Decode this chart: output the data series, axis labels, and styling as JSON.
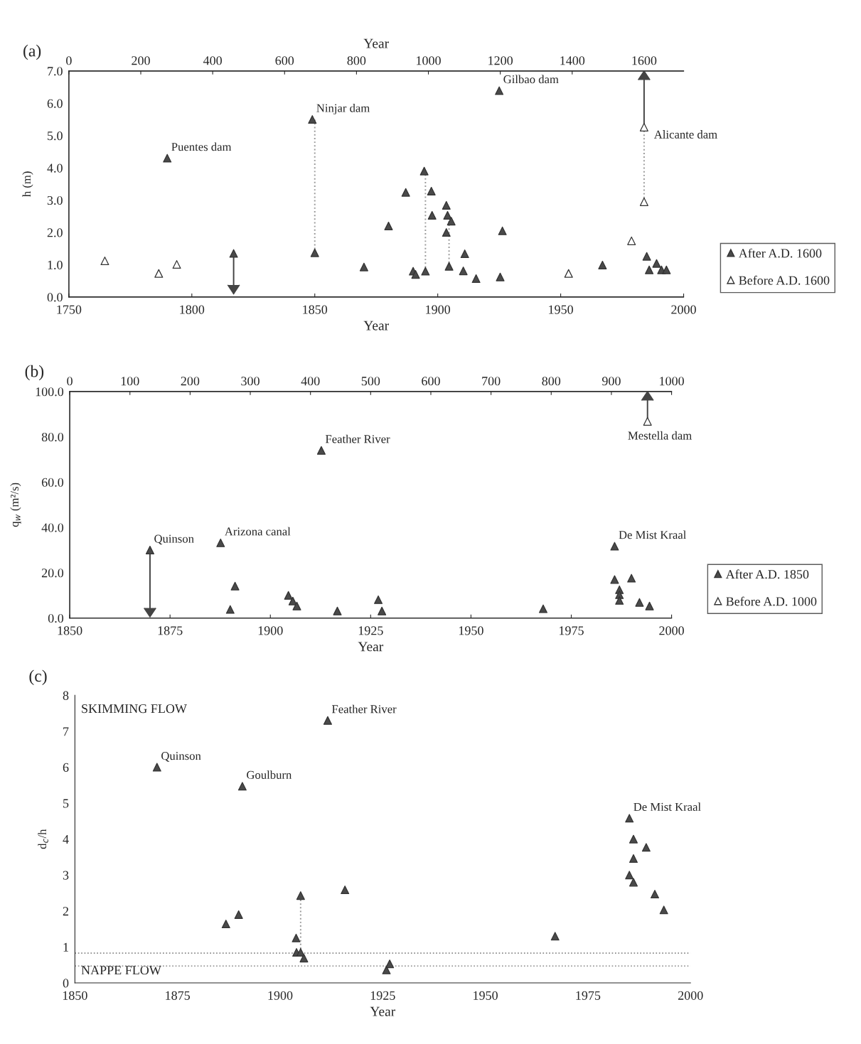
{
  "chart_data": [
    {
      "type": "scatter",
      "title": "(a)",
      "xlabel": "Year",
      "ylabel": "h (m)",
      "x2label": "Year",
      "xlim": [
        1750,
        2000
      ],
      "xticks": [
        1750,
        1800,
        1850,
        1900,
        1950,
        2000
      ],
      "x2lim": [
        0,
        1710
      ],
      "x2ticks": [
        0,
        200,
        400,
        600,
        800,
        1000,
        1200,
        1400,
        1600
      ],
      "ylim": [
        0,
        7
      ],
      "yticks": [
        {
          "value": 0,
          "label": "0.0"
        },
        {
          "value": 1,
          "label": "1.0"
        },
        {
          "value": 2,
          "label": "2.0"
        },
        {
          "value": 3,
          "label": "3.0"
        },
        {
          "value": 4,
          "label": "4.0"
        },
        {
          "value": 5,
          "label": "5.0"
        },
        {
          "value": 6,
          "label": "6.0"
        },
        {
          "value": 7,
          "label": "7.0"
        }
      ],
      "marker": "triangle",
      "legend": "right",
      "grid": false,
      "series": [
        {
          "type": "line",
          "color": "#9a9a9a",
          "line_style": "dotted",
          "marker": "none",
          "x": [
            1850,
            1850
          ],
          "values": [
            1.37,
            5.5
          ]
        },
        {
          "type": "line",
          "color": "#9a9a9a",
          "line_style": "dotted",
          "marker": "none",
          "x": [
            1895,
            1895
          ],
          "values": [
            0.8,
            3.9
          ]
        },
        {
          "type": "line",
          "color": "#9a9a9a",
          "line_style": "dotted",
          "marker": "none",
          "x": [
            1904.6,
            1904.6
          ],
          "values": [
            0.95,
            2.5
          ]
        },
        {
          "type": "line",
          "color": "#9a9a9a",
          "line_style": "dotted",
          "marker": "none",
          "axis": "x2",
          "x": [
            1600,
            1600
          ],
          "values": [
            2.95,
            5.26
          ]
        },
        {
          "name": "After A.D. 1600",
          "color": "#4a4a4a",
          "x": [
            1790,
            1817,
            1849,
            1850,
            1870,
            1880,
            1887,
            1890,
            1891,
            1894.5,
            1895,
            1897.4,
            1897.7,
            1903.5,
            1903.5,
            1904,
            1905.5,
            1904.6,
            1910.4,
            1911,
            1915.6,
            1925,
            1925.4,
            1926.3,
            1967,
            1985,
            1986,
            1989,
            1991,
            1993
          ],
          "values": [
            4.3,
            1.35,
            5.5,
            1.37,
            0.93,
            2.2,
            3.24,
            0.8,
            0.7,
            3.9,
            0.8,
            3.28,
            2.53,
            2.84,
            2.0,
            2.53,
            2.35,
            0.95,
            0.81,
            1.34,
            0.57,
            6.39,
            0.62,
            2.05,
            0.99,
            1.26,
            0.84,
            1.04,
            0.84,
            0.84
          ],
          "errors": [
            null,
            [
              0.1,
              1.35
            ],
            null,
            null,
            null,
            null,
            null,
            null,
            null,
            null,
            null,
            null,
            null,
            null,
            null,
            null,
            null,
            null,
            null,
            null,
            null,
            null,
            null,
            null,
            null,
            null,
            null,
            null,
            null,
            null
          ]
        },
        {
          "name": "Before A.D. 1600",
          "color": "#ffffff",
          "axis": "x2",
          "x": [
            100,
            250,
            300,
            1390,
            1565,
            1600,
            1600
          ],
          "values": [
            1.12,
            0.73,
            1.01,
            0.73,
            1.74,
            2.95,
            5.26
          ],
          "errors": [
            null,
            null,
            null,
            null,
            null,
            null,
            [
              5.26,
              7.0
            ]
          ]
        }
      ],
      "annotations": [
        {
          "text": "Puentes dam",
          "x": 1790,
          "y": 4.3
        },
        {
          "text": "Ninjar dam",
          "x": 1849,
          "y": 5.5
        },
        {
          "text": "Gilbao dam",
          "x": 1925,
          "y": 6.39
        },
        "Alicante dam"
      ]
    },
    {
      "type": "scatter",
      "title": "(b)",
      "xlabel": "Year",
      "ylabel": "q$_{w}$ (m²/s)",
      "xlim": [
        1850,
        2000
      ],
      "xticks": [
        1850,
        1875,
        1900,
        1925,
        1950,
        1975,
        2000
      ],
      "x2lim": [
        0,
        1000
      ],
      "x2ticks": [
        0,
        100,
        200,
        300,
        400,
        500,
        600,
        700,
        800,
        900,
        1000
      ],
      "ylim": [
        0,
        100
      ],
      "yticks": [
        {
          "value": 0,
          "label": "0.0"
        },
        {
          "value": 20,
          "label": "20.0"
        },
        {
          "value": 40,
          "label": "40.0"
        },
        {
          "value": 60,
          "label": "60.0"
        },
        {
          "value": 80,
          "label": "80.0"
        },
        {
          "value": 100,
          "label": "100.0"
        }
      ],
      "marker": "triangle",
      "legend": "right",
      "grid": false,
      "series": [
        {
          "name": "After A.D. 1850",
          "color": "#4a4a4a",
          "x": [
            1870,
            1887.6,
            1890,
            1891.2,
            1904.5,
            1905.6,
            1906.6,
            1912.7,
            1916.7,
            1926.9,
            1927.8,
            1968,
            1985.8,
            1985.8,
            1990,
            1987,
            1987,
            1987,
            1992,
            1994.5
          ],
          "values": [
            30,
            33.2,
            3.8,
            14.1,
            10.0,
            7.5,
            5.3,
            74,
            3.1,
            8.1,
            3.1,
            4.1,
            31.7,
            17,
            17.6,
            12.5,
            10.3,
            7.8,
            6.9,
            5.3
          ],
          "errors": [
            [
              0.5,
              30
            ],
            null,
            null,
            null,
            null,
            null,
            null,
            null,
            null,
            null,
            null,
            null,
            null,
            null,
            null,
            null,
            null,
            null,
            null,
            null
          ]
        },
        {
          "name": "Before A.D. 1000",
          "color": "#ffffff",
          "axis": "x2",
          "x": [
            960
          ],
          "values": [
            86.8
          ],
          "errors": [
            [
              86.8,
              100
            ]
          ]
        }
      ],
      "annotations": [
        {
          "text": "Quinson",
          "x": 1870,
          "y": 30
        },
        {
          "text": "Arizona canal",
          "x": 1887.6,
          "y": 33.2
        },
        {
          "text": "Feather River",
          "x": 1912.7,
          "y": 74
        },
        {
          "text": "De Mist Kraal",
          "x": 1985.8,
          "y": 31.7
        },
        "Mestella dam"
      ]
    },
    {
      "type": "scatter",
      "title": "(c)",
      "xlabel": "Year",
      "ylabel": "d$_{c}$/h",
      "xlim": [
        1850,
        2000
      ],
      "xticks": [
        1850,
        1875,
        1900,
        1925,
        1950,
        1975,
        2000
      ],
      "ylim": [
        0,
        8
      ],
      "yticks": [
        0,
        1,
        2,
        3,
        4,
        5,
        6,
        7,
        8
      ],
      "marker": "triangle",
      "grid": false,
      "ref_lines": [
        {
          "axis": "y",
          "value": 0.83,
          "color": "#888888",
          "line_style": "dotted"
        },
        {
          "axis": "y",
          "value": 0.47,
          "color": "#888888",
          "line_style": "dotted"
        }
      ],
      "series": [
        {
          "type": "line",
          "color": "#9a9a9a",
          "line_style": "dotted",
          "marker": "none",
          "x": [
            1905,
            1905
          ],
          "values": [
            0.85,
            2.43
          ]
        },
        {
          "color": "#4a4a4a",
          "x": [
            1870,
            1890.8,
            1911.6,
            1886.8,
            1889.9,
            1905,
            1903.9,
            1904,
            1905,
            1905.8,
            1915.8,
            1925.9,
            1926.7,
            1967,
            1985.1,
            1986.1,
            1989.2,
            1986.1,
            1985.1,
            1986.1,
            1991.3,
            1993.5
          ],
          "values": [
            6.0,
            5.47,
            7.3,
            1.64,
            1.9,
            2.43,
            1.25,
            0.85,
            0.85,
            0.69,
            2.59,
            0.36,
            0.53,
            1.3,
            4.58,
            4.0,
            3.77,
            3.46,
            3.0,
            2.8,
            2.47,
            2.03
          ]
        }
      ],
      "annotations": [
        "SKIMMING FLOW",
        "NAPPE FLOW",
        {
          "text": "Quinson",
          "x": 1870,
          "y": 6.0
        },
        {
          "text": "Goulburn",
          "x": 1890.8,
          "y": 5.47
        },
        {
          "text": "Feather River",
          "x": 1911.6,
          "y": 7.3
        },
        {
          "text": "De Mist Kraal",
          "x": 1985.1,
          "y": 4.58
        }
      ]
    }
  ]
}
